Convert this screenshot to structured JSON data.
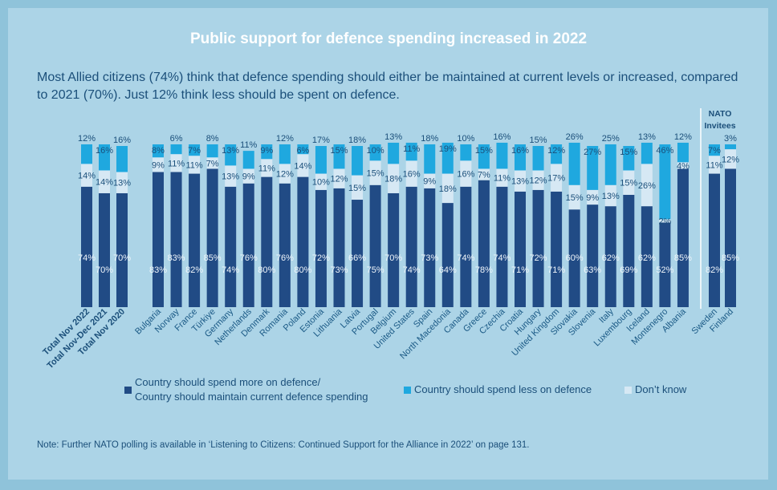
{
  "title": "Public support for defence spending increased in 2022",
  "subtitle": "Most Allied citizens (74%) think that defence spending should either be maintained at current levels or increased, compared to 2021 (70%). Just 12% think less should be spent on defence.",
  "note": "Note: Further NATO polling is available in ‘Listening to Citizens: Continued Support for the Alliance in 2022’ on page 131.",
  "invitees_label": "NATO Invitees",
  "colors": {
    "more": "#214b85",
    "dont_know": "#d6e8f4",
    "less": "#1fa8df"
  },
  "chart_data": {
    "type": "bar",
    "stacked": true,
    "unit": "%",
    "categories": [
      "Total Nov 2022",
      "Total Nov-Dec 2021",
      "Total Nov 2020",
      "Bulgaria",
      "Norway",
      "France",
      "Türkiye",
      "Germany",
      "Netherlands",
      "Denmark",
      "Romania",
      "Poland",
      "Estonia",
      "Lithuania",
      "Latvia",
      "Portugal",
      "Belgium",
      "United States",
      "Spain",
      "North Macedonia",
      "Canada",
      "Greece",
      "Czechia",
      "Croatia",
      "Hungary",
      "United Kingdom",
      "Slovakia",
      "Slovenia",
      "Italy",
      "Luxembourg",
      "Iceland",
      "Montenegro",
      "Albania",
      "Sweden",
      "Finland"
    ],
    "groups": {
      "totals": 3,
      "allies": 30,
      "invitees": 2
    },
    "series": [
      {
        "name": "Country should spend more on defence/ Country should maintain current defence spending",
        "key": "more",
        "values": [
          74,
          70,
          70,
          83,
          83,
          82,
          85,
          74,
          76,
          80,
          76,
          80,
          72,
          73,
          66,
          75,
          70,
          74,
          73,
          64,
          74,
          78,
          74,
          71,
          72,
          71,
          60,
          63,
          62,
          69,
          62,
          52,
          85,
          82,
          85
        ]
      },
      {
        "name": "Don’t know",
        "key": "dont_know",
        "values": [
          14,
          14,
          13,
          9,
          11,
          11,
          7,
          13,
          9,
          11,
          12,
          14,
          10,
          12,
          15,
          15,
          18,
          16,
          9,
          18,
          16,
          7,
          11,
          13,
          12,
          17,
          15,
          9,
          13,
          15,
          26,
          2,
          4,
          11,
          12
        ]
      },
      {
        "name": "Country should spend less on defence",
        "key": "less",
        "values": [
          12,
          16,
          16,
          8,
          6,
          7,
          8,
          13,
          11,
          9,
          12,
          6,
          17,
          15,
          18,
          10,
          13,
          11,
          18,
          19,
          10,
          15,
          16,
          16,
          15,
          12,
          26,
          27,
          25,
          15,
          13,
          46,
          12,
          7,
          3
        ]
      }
    ],
    "ylim": [
      0,
      100
    ],
    "grid": false,
    "legend_position": "bottom"
  },
  "legend": {
    "more_line1": "Country should spend more on defence/",
    "more_line2": "Country should maintain current defence spending",
    "less": "Country should spend less on defence",
    "dont_know": "Don’t know"
  }
}
